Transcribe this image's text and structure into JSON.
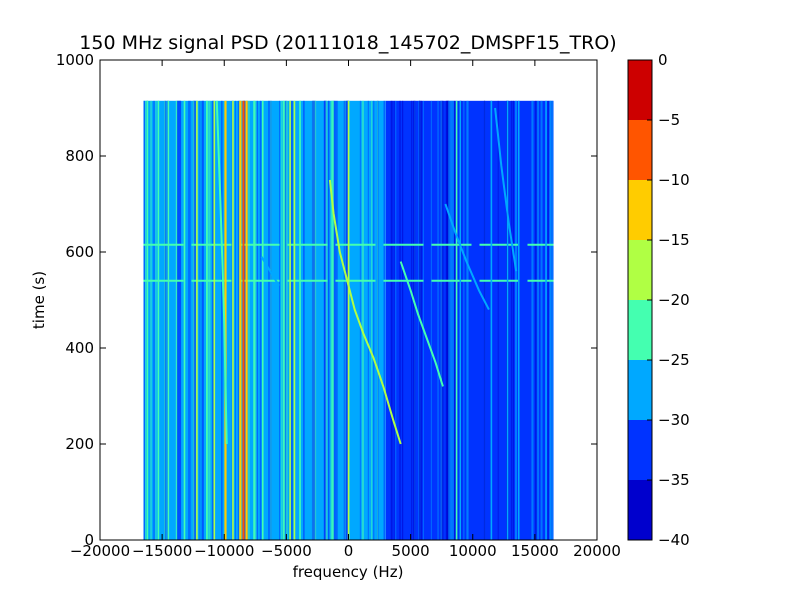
{
  "chart_data": {
    "type": "heatmap",
    "title": "150 MHz signal PSD (20111018_145702_DMSPF15_TRO)",
    "xlabel": "frequency (Hz)",
    "ylabel": "time (s)",
    "xlim": [
      -20000,
      20000
    ],
    "ylim": [
      0,
      1000
    ],
    "xticks": [
      -20000,
      -15000,
      -10000,
      -5000,
      0,
      5000,
      10000,
      15000,
      20000
    ],
    "xtick_labels": [
      "−20000",
      "−15000",
      "−10000",
      "−5000",
      "0",
      "5000",
      "10000",
      "15000",
      "20000"
    ],
    "yticks": [
      0,
      200,
      400,
      600,
      800,
      1000
    ],
    "ytick_labels": [
      "0",
      "200",
      "400",
      "600",
      "800",
      "1000"
    ],
    "data_extent": {
      "x": [
        -16500,
        16500
      ],
      "y": [
        0,
        915
      ]
    },
    "colorbar": {
      "range": [
        -40,
        0
      ],
      "levels": [
        -40,
        -35,
        -30,
        -25,
        -20,
        -15,
        -10,
        -5,
        0
      ],
      "tick_labels": [
        "−40",
        "−35",
        "−30",
        "−25",
        "−20",
        "−15",
        "−10",
        "−5",
        "0"
      ],
      "colors": [
        "#0000cd",
        "#0033ff",
        "#00a8ff",
        "#44ffb0",
        "#b0ff44",
        "#ffcc00",
        "#ff5500",
        "#cd0000"
      ]
    },
    "background_level_by_band": [
      {
        "x": [
          -16500,
          3000
        ],
        "value": -27
      },
      {
        "x": [
          3000,
          7500
        ],
        "value": -31
      },
      {
        "x": [
          7500,
          16500
        ],
        "value": -33
      }
    ],
    "horizontal_lines": [
      {
        "y": 540,
        "value": -25
      },
      {
        "y": 615,
        "value": -25
      }
    ],
    "vertical_lines": [
      {
        "x": -16200,
        "value": -24
      },
      {
        "x": -15300,
        "value": -25
      },
      {
        "x": -14500,
        "value": -22
      },
      {
        "x": -13200,
        "value": -24
      },
      {
        "x": -12200,
        "value": -20
      },
      {
        "x": -11400,
        "value": -22
      },
      {
        "x": -10800,
        "value": -18
      },
      {
        "x": -9900,
        "value": -12
      },
      {
        "x": -9300,
        "value": -20
      },
      {
        "x": -8700,
        "value": -15
      },
      {
        "x": -8450,
        "value": -8
      },
      {
        "x": -8200,
        "value": -13
      },
      {
        "x": -7600,
        "value": -22
      },
      {
        "x": -6900,
        "value": -21
      },
      {
        "x": -5200,
        "value": -24
      },
      {
        "x": -4700,
        "value": -17
      },
      {
        "x": -4350,
        "value": -18
      },
      {
        "x": -3900,
        "value": -24
      },
      {
        "x": 0,
        "value": -20
      },
      {
        "x": 8700,
        "value": -24
      },
      {
        "x": 9000,
        "value": -27
      },
      {
        "x": 11500,
        "value": -27
      },
      {
        "x": 12800,
        "value": -26
      },
      {
        "x": 13700,
        "value": -27
      },
      {
        "x": 15900,
        "value": -26
      }
    ],
    "curved_traces": [
      {
        "value": -18,
        "x": [
          -1500,
          -1200,
          -700,
          0,
          500,
          1200,
          2000,
          2800,
          3600,
          4200
        ],
        "y": [
          750,
          680,
          600,
          530,
          480,
          430,
          380,
          320,
          250,
          200
        ]
      },
      {
        "value": -23,
        "x": [
          4200,
          5000,
          5600,
          6300,
          7000,
          7600
        ],
        "y": [
          580,
          520,
          470,
          420,
          370,
          320
        ]
      },
      {
        "value": -27,
        "x": [
          7800,
          8600,
          9500,
          10500,
          11300
        ],
        "y": [
          700,
          640,
          580,
          520,
          480
        ]
      },
      {
        "value": -27,
        "x": [
          11800,
          12300,
          12900,
          13500
        ],
        "y": [
          900,
          780,
          660,
          560
        ]
      },
      {
        "value": -26,
        "x": [
          -7000,
          -6300,
          -5600
        ],
        "y": [
          590,
          560,
          530
        ]
      },
      {
        "value": -25,
        "x": [
          -10600,
          -10300,
          -10000,
          -9800
        ],
        "y": [
          915,
          700,
          450,
          200
        ]
      }
    ]
  }
}
